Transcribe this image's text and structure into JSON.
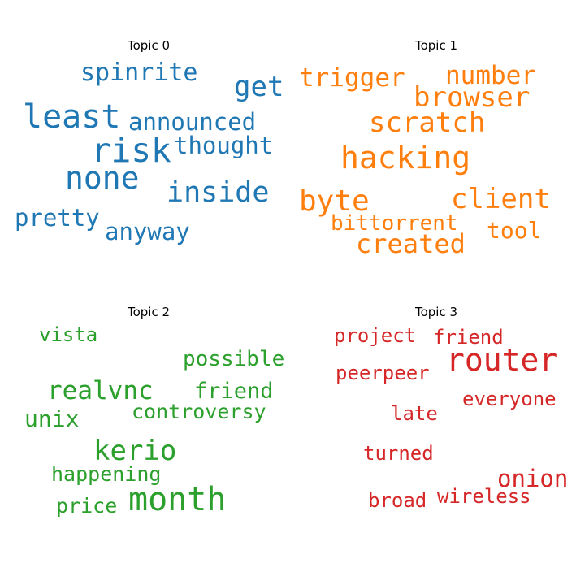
{
  "chart_data": [
    {
      "type": "wordcloud",
      "title": "Topic 0",
      "color": "#1f77b4",
      "words": [
        {
          "text": "spinrite",
          "size": 30
        },
        {
          "text": "get",
          "size": 34
        },
        {
          "text": "least",
          "size": 40
        },
        {
          "text": "announced",
          "size": 29
        },
        {
          "text": "risk",
          "size": 41
        },
        {
          "text": "thought",
          "size": 29
        },
        {
          "text": "none",
          "size": 38
        },
        {
          "text": "inside",
          "size": 35
        },
        {
          "text": "pretty",
          "size": 29
        },
        {
          "text": "anyway",
          "size": 29
        }
      ]
    },
    {
      "type": "wordcloud",
      "title": "Topic 1",
      "color": "#ff7f0e",
      "words": [
        {
          "text": "trigger",
          "size": 31
        },
        {
          "text": "number",
          "size": 31
        },
        {
          "text": "browser",
          "size": 34
        },
        {
          "text": "scratch",
          "size": 34
        },
        {
          "text": "hacking",
          "size": 38
        },
        {
          "text": "byte",
          "size": 36
        },
        {
          "text": "client",
          "size": 34
        },
        {
          "text": "bittorrent",
          "size": 26
        },
        {
          "text": "tool",
          "size": 28
        },
        {
          "text": "created",
          "size": 32
        }
      ]
    },
    {
      "type": "wordcloud",
      "title": "Topic 2",
      "color": "#2ca02c",
      "words": [
        {
          "text": "vista",
          "size": 24
        },
        {
          "text": "possible",
          "size": 26
        },
        {
          "text": "realvnc",
          "size": 31
        },
        {
          "text": "friend",
          "size": 27
        },
        {
          "text": "unix",
          "size": 28
        },
        {
          "text": "controversy",
          "size": 25
        },
        {
          "text": "kerio",
          "size": 34
        },
        {
          "text": "happening",
          "size": 25
        },
        {
          "text": "price",
          "size": 25
        },
        {
          "text": "month",
          "size": 40
        }
      ]
    },
    {
      "type": "wordcloud",
      "title": "Topic 3",
      "color": "#d62728",
      "words": [
        {
          "text": "project",
          "size": 24
        },
        {
          "text": "friend",
          "size": 24
        },
        {
          "text": "router",
          "size": 38
        },
        {
          "text": "peerpeer",
          "size": 24
        },
        {
          "text": "everyone",
          "size": 24
        },
        {
          "text": "late",
          "size": 24
        },
        {
          "text": "turned",
          "size": 24
        },
        {
          "text": "onion",
          "size": 29
        },
        {
          "text": "broad",
          "size": 24
        },
        {
          "text": "wireless",
          "size": 24
        }
      ]
    }
  ]
}
